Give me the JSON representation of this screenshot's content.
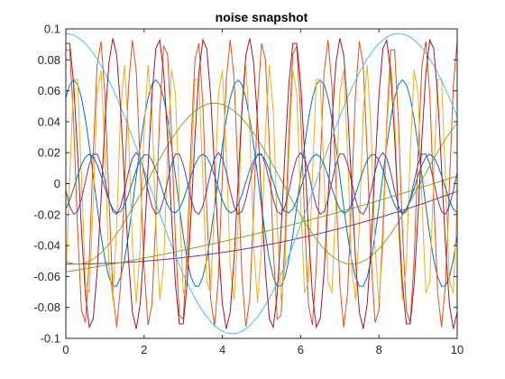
{
  "chart_data": {
    "type": "line",
    "title": "noise snapshot",
    "xlabel": "",
    "ylabel": "",
    "xlim": [
      0,
      10
    ],
    "ylim": [
      -0.1,
      0.1
    ],
    "xticks": [
      0,
      2,
      4,
      6,
      8,
      10
    ],
    "yticks": [
      -0.1,
      -0.08,
      -0.06,
      -0.04,
      -0.02,
      0,
      0.02,
      0.04,
      0.06,
      0.08,
      0.1
    ],
    "xtick_labels": [
      "0",
      "2",
      "4",
      "6",
      "8",
      "10"
    ],
    "ytick_labels": [
      "-0.1",
      "-0.08",
      "-0.06",
      "-0.04",
      "-0.02",
      "0",
      "0.02",
      "0.04",
      "0.06",
      "0.08",
      "0.1"
    ],
    "grid": false,
    "legend": "none",
    "x_range_sampled": [
      0,
      10,
      0.1
    ],
    "series": [
      {
        "color": "#0072BD",
        "amplitude": 0.067,
        "period": 2.1,
        "phase_at_x": 0.2,
        "offset": 0
      },
      {
        "color": "#D95319",
        "amplitude": 0.093,
        "period": 0.83,
        "phase_at_x": 0.05,
        "offset": 0
      },
      {
        "color": "#EDB120",
        "amplitude": 0.077,
        "period": 0.62,
        "phase_at_x": 0.25,
        "offset": 0
      },
      {
        "color": "#7E2F8E",
        "amplitude": 0.02,
        "period": 1.05,
        "phase_at_x": 0.75,
        "offset": 0
      },
      {
        "color": "#7E2F8E",
        "amplitude": 0,
        "period": 1,
        "phase_at_x": 0,
        "offset": 0,
        "poly": [
          -0.052,
          0.0,
          0.00047
        ]
      },
      {
        "color": "#77AC30",
        "amplitude": 0.052,
        "period": 7.0,
        "phase_at_x": 3.8,
        "offset": 0
      },
      {
        "color": "#77AC30",
        "amplitude": 0,
        "period": 1,
        "phase_at_x": 0,
        "offset": 0,
        "poly": [
          -0.057,
          0.004,
          0.00022
        ]
      },
      {
        "color": "#4DBEEE",
        "amplitude": 0.097,
        "period": 8.5,
        "phase_at_x": 0.0,
        "offset": 0
      },
      {
        "color": "#A2142F",
        "amplitude": 0.094,
        "period": 1.16,
        "phase_at_x": 0.05,
        "offset": 0
      },
      {
        "color": "#0072BD",
        "amplitude": 0.019,
        "period": 1.45,
        "phase_at_x": 0.6,
        "offset": 0
      }
    ]
  }
}
